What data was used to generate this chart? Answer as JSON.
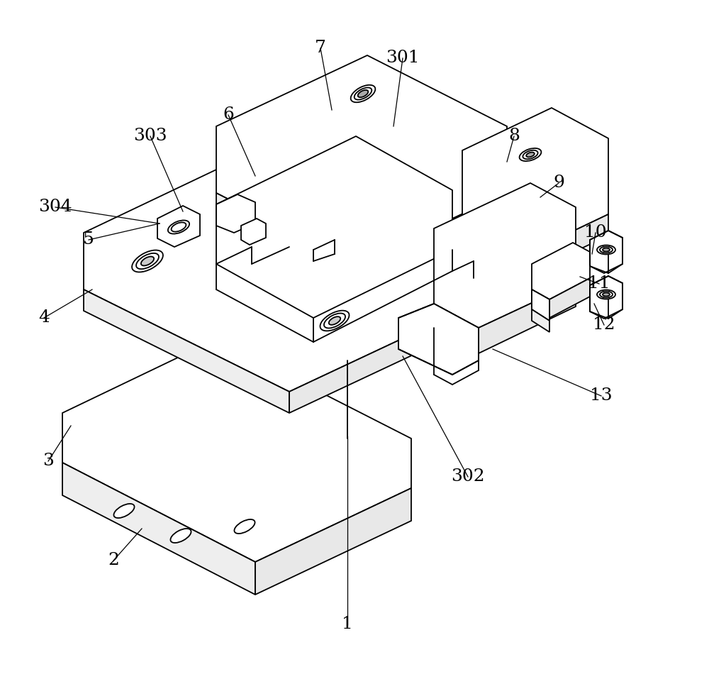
{
  "background_color": "#ffffff",
  "line_color": "#000000",
  "lw": 1.3,
  "lw_thin": 0.8,
  "label_fontsize": 18,
  "figsize": [
    10.0,
    9.64
  ],
  "dpi": 100,
  "leaders": [
    [
      "1",
      490,
      880,
      490,
      615
    ],
    [
      "2",
      160,
      790,
      200,
      745
    ],
    [
      "3",
      68,
      650,
      100,
      600
    ],
    [
      "4",
      62,
      448,
      130,
      408
    ],
    [
      "5",
      125,
      338,
      225,
      315
    ],
    [
      "6",
      322,
      162,
      360,
      248
    ],
    [
      "7",
      452,
      68,
      468,
      155
    ],
    [
      "8",
      725,
      192,
      715,
      228
    ],
    [
      "9",
      788,
      258,
      762,
      278
    ],
    [
      "10",
      840,
      328,
      835,
      358
    ],
    [
      "11",
      845,
      400,
      818,
      390
    ],
    [
      "12",
      852,
      458,
      838,
      428
    ],
    [
      "13",
      848,
      558,
      695,
      492
    ],
    [
      "301",
      568,
      82,
      555,
      178
    ],
    [
      "302",
      660,
      672,
      568,
      502
    ],
    [
      "303",
      212,
      192,
      258,
      298
    ],
    [
      "304",
      78,
      292,
      225,
      315
    ]
  ]
}
